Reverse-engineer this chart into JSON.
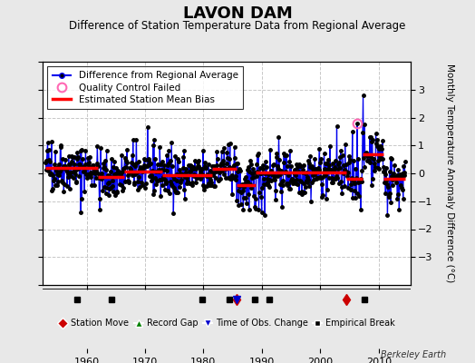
{
  "title": "LAVON DAM",
  "subtitle": "Difference of Station Temperature Data from Regional Average",
  "ylabel_right": "Monthly Temperature Anomaly Difference (°C)",
  "background_color": "#e8e8e8",
  "plot_bg_color": "#ffffff",
  "ylim": [
    -4,
    4
  ],
  "xlim": [
    1952.5,
    2015.5
  ],
  "xticks": [
    1960,
    1970,
    1980,
    1990,
    2000,
    2010
  ],
  "yticks_right": [
    -3,
    -2,
    -1,
    0,
    1,
    2,
    3
  ],
  "grid_color": "#c8c8c8",
  "watermark": "Berkeley Earth",
  "title_fontsize": 13,
  "subtitle_fontsize": 8.5,
  "axis_label_fontsize": 7.5,
  "tick_fontsize": 8,
  "legend_fontsize": 7.5,
  "line_color": "#0000ee",
  "line_width": 0.9,
  "marker_color": "#000000",
  "marker_size": 2.5,
  "bias_color": "#ff0000",
  "bias_linewidth": 2.5,
  "qc_color": "#ff69b4",
  "station_move_color": "#cc0000",
  "record_gap_color": "#008000",
  "tobs_color": "#0000cc",
  "empirical_break_color": "#000000",
  "seed": 42,
  "t_start": 1953.0,
  "t_end": 2014.5,
  "bias_segments": [
    {
      "x_start": 1953.0,
      "x_end": 1962.0,
      "bias": 0.18
    },
    {
      "x_start": 1962.0,
      "x_end": 1966.5,
      "bias": -0.12
    },
    {
      "x_start": 1966.5,
      "x_end": 1973.0,
      "bias": 0.05
    },
    {
      "x_start": 1973.0,
      "x_end": 1981.5,
      "bias": -0.08
    },
    {
      "x_start": 1981.5,
      "x_end": 1985.7,
      "bias": 0.15
    },
    {
      "x_start": 1985.7,
      "x_end": 1989.0,
      "bias": -0.42
    },
    {
      "x_start": 1989.0,
      "x_end": 2004.5,
      "bias": 0.02
    },
    {
      "x_start": 2004.5,
      "x_end": 2007.2,
      "bias": -0.18
    },
    {
      "x_start": 2007.2,
      "x_end": 2010.8,
      "bias": 0.68
    },
    {
      "x_start": 2010.8,
      "x_end": 2014.5,
      "bias": -0.18
    }
  ],
  "station_moves": [
    1985.7,
    2004.5
  ],
  "empirical_breaks": [
    1958.3,
    1964.2,
    1979.8,
    1984.5,
    1988.8,
    1991.2,
    2007.5
  ],
  "qc_failed_year": 2006.3,
  "tobs_changes": [
    1985.7
  ],
  "record_gaps": [],
  "event_strip_xlim": [
    1952.5,
    2015.5
  ]
}
